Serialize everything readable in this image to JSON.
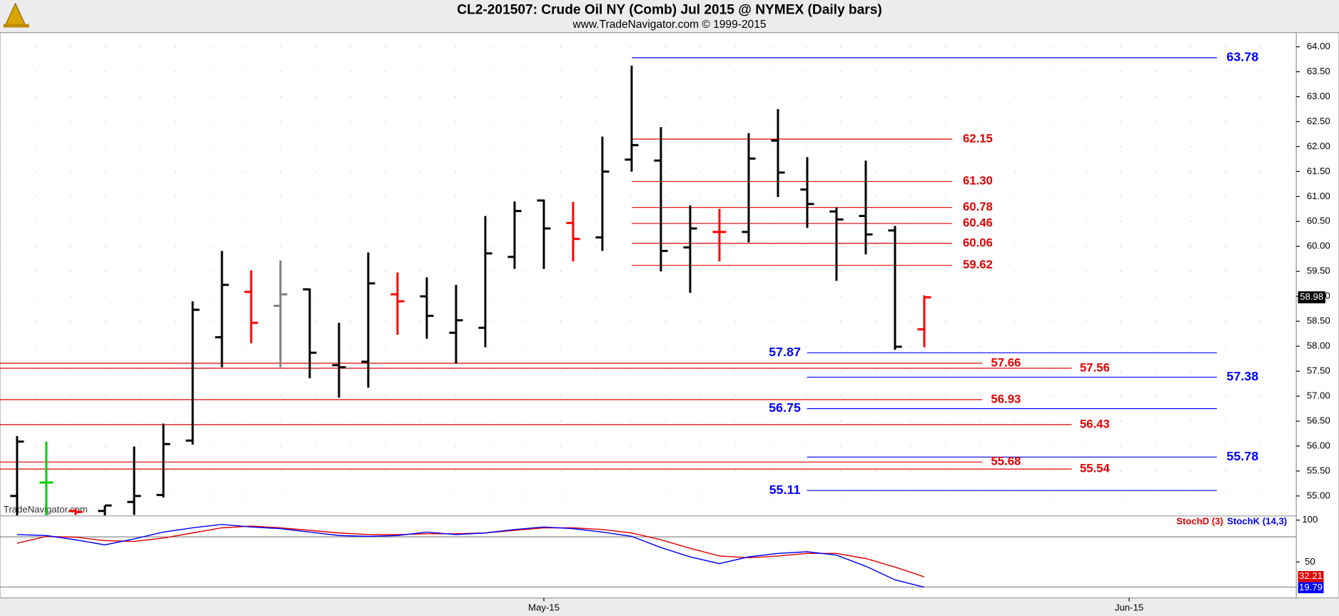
{
  "chart_data": [
    {
      "type": "ohlc",
      "title": "CL2-201507:  Crude Oil NY (Comb) Jul 2015 @ NYMEX  (Daily bars)",
      "subtitle": "www.TradeNavigator.com © 1999-2015",
      "watermark": "TradeNavigator.com",
      "categories": [
        null,
        null,
        null,
        null,
        null,
        null,
        null,
        null,
        null,
        null,
        null,
        null,
        null,
        null,
        null,
        null,
        null,
        null,
        "May-15",
        null,
        null,
        null,
        null,
        null,
        null,
        null,
        null,
        null,
        null,
        null,
        null,
        null,
        null,
        null,
        null,
        null,
        null,
        null,
        "Jun-15",
        null,
        null,
        null,
        null,
        null
      ],
      "open": [
        55.0,
        55.27,
        54.7,
        54.7,
        54.88,
        55.02,
        56.11,
        58.18,
        59.09,
        58.81,
        59.14,
        57.62,
        57.69,
        59.04,
        59.0,
        58.27,
        58.37,
        59.79,
        60.92,
        60.47,
        60.18,
        61.74,
        61.72,
        59.98,
        60.29,
        60.29,
        62.12,
        61.14,
        60.7,
        60.61,
        60.32,
        58.34,
        null,
        null,
        null,
        null,
        null,
        null,
        null,
        null,
        null,
        null,
        null,
        null
      ],
      "high": [
        56.2,
        56.09,
        54.75,
        54.81,
        55.99,
        56.45,
        58.9,
        59.91,
        59.52,
        59.72,
        59.16,
        58.47,
        59.88,
        59.48,
        59.38,
        59.23,
        60.61,
        60.9,
        60.94,
        60.89,
        62.2,
        63.62,
        62.39,
        60.82,
        60.75,
        62.27,
        62.75,
        61.79,
        60.78,
        61.72,
        60.41,
        59.02,
        null,
        null,
        null,
        null,
        null,
        null,
        null,
        null,
        null,
        null,
        null,
        null
      ],
      "low": [
        54.61,
        54.61,
        54.62,
        54.61,
        54.62,
        54.97,
        56.03,
        57.58,
        58.06,
        57.58,
        57.36,
        56.97,
        57.17,
        58.23,
        58.15,
        57.65,
        57.98,
        59.55,
        59.55,
        59.7,
        59.91,
        61.5,
        59.5,
        59.07,
        59.7,
        60.08,
        60.99,
        60.37,
        59.31,
        59.84,
        57.93,
        57.98,
        null,
        null,
        null,
        null,
        null,
        null,
        null,
        null,
        null,
        null,
        null,
        null
      ],
      "close": [
        56.09,
        55.27,
        54.68,
        54.81,
        55.0,
        56.04,
        58.73,
        59.23,
        58.47,
        59.04,
        57.87,
        57.58,
        59.26,
        58.9,
        58.61,
        58.52,
        59.86,
        60.71,
        60.36,
        60.15,
        61.5,
        62.03,
        59.91,
        60.36,
        60.29,
        61.76,
        61.48,
        60.85,
        60.54,
        60.24,
        57.99,
        58.98,
        null,
        null,
        null,
        null,
        null,
        null,
        null,
        null,
        null,
        null,
        null,
        null
      ],
      "bar_colors": [
        "#000000",
        "#00cc00",
        "#ff0000",
        "#000000",
        "#000000",
        "#000000",
        "#000000",
        "#000000",
        "#ff0000",
        "#808080",
        "#000000",
        "#000000",
        "#000000",
        "#ff0000",
        "#000000",
        "#000000",
        "#000000",
        "#000000",
        "#000000",
        "#ff0000",
        "#000000",
        "#000000",
        "#000000",
        "#000000",
        "#ff0000",
        "#000000",
        "#000000",
        "#000000",
        "#000000",
        "#000000",
        "#000000",
        "#ff0000",
        null,
        null,
        null,
        null,
        null,
        null,
        null,
        null,
        null,
        null,
        null,
        null
      ],
      "ylim": [
        54.6,
        64.25
      ],
      "yticks": [
        {
          "value": 55,
          "label": "55.00"
        },
        {
          "value": 55.5,
          "label": "55.50"
        },
        {
          "value": 56,
          "label": "56.00"
        },
        {
          "value": 56.5,
          "label": "56.50"
        },
        {
          "value": 57,
          "label": "57.00"
        },
        {
          "value": 57.5,
          "label": "57.50"
        },
        {
          "value": 58,
          "label": "58.00"
        },
        {
          "value": 58.5,
          "label": "58.50"
        },
        {
          "value": 59,
          "label": "59.00"
        },
        {
          "value": 59.5,
          "label": "59.50"
        },
        {
          "value": 60,
          "label": "60.00"
        },
        {
          "value": 60.5,
          "label": "60.50"
        },
        {
          "value": 61,
          "label": "61.00"
        },
        {
          "value": 61.5,
          "label": "61.50"
        },
        {
          "value": 62,
          "label": "62.00"
        },
        {
          "value": 62.5,
          "label": "62.50"
        },
        {
          "value": 63,
          "label": "63.00"
        },
        {
          "value": 63.5,
          "label": "63.50"
        },
        {
          "value": 64,
          "label": "64.00"
        }
      ],
      "grid": true,
      "hlines": [
        {
          "value": 63.78,
          "color": "#0000ff"
        },
        {
          "value": 62.15,
          "color": "#e00000"
        },
        {
          "value": 61.3,
          "label": "61.30",
          "color": "#e00000"
        },
        {
          "value": 60.78,
          "color": "#e00000"
        },
        {
          "value": 60.46,
          "color": "#e00000"
        },
        {
          "value": 60.06,
          "color": "#e00000"
        },
        {
          "value": 59.62,
          "color": "#e00000"
        },
        {
          "value": 57.87,
          "color": "#0000ff"
        },
        {
          "value": 57.66,
          "color": "#e00000"
        },
        {
          "value": 57.56,
          "color": "#e00000"
        },
        {
          "value": 57.38,
          "color": "#0000ff"
        },
        {
          "value": 56.93,
          "color": "#e00000"
        },
        {
          "value": 56.75,
          "color": "#0000ff"
        },
        {
          "value": 56.43,
          "color": "#e00000"
        },
        {
          "value": 55.78,
          "color": "#0000ff"
        },
        {
          "value": 55.68,
          "color": "#e00000"
        },
        {
          "value": 55.54,
          "color": "#e00000"
        },
        {
          "value": 55.11,
          "color": "#0000ff"
        }
      ]
    },
    {
      "type": "line",
      "series": [
        {
          "name": "StochD (3)",
          "color": "#e00000",
          "values": [
            72.4,
            80.6,
            79.6,
            75.5,
            74.5,
            78.6,
            84.7,
            90.8,
            92.9,
            90.8,
            87.8,
            84.7,
            82.7,
            82.7,
            83.7,
            83.7,
            84.7,
            87.8,
            90.8,
            90.8,
            88.8,
            84.7,
            76.5,
            66.3,
            57.1,
            55.1,
            57.1,
            60.2,
            60.2,
            54.1,
            43.9,
            32.21,
            null,
            null,
            null,
            null,
            null,
            null,
            null,
            null,
            null,
            null,
            null,
            null
          ]
        },
        {
          "name": "StochK (14,3)",
          "color": "#0000ff",
          "values": [
            82.7,
            81.6,
            76.5,
            70.4,
            77.6,
            85.7,
            90.8,
            94.9,
            91.8,
            89.8,
            85.7,
            81.6,
            80.6,
            81.6,
            85.7,
            82.7,
            84.7,
            88.8,
            91.8,
            89.8,
            85.7,
            80.6,
            67.3,
            56.1,
            48.0,
            56.1,
            60.2,
            62.2,
            58.2,
            44.9,
            28.6,
            19.79,
            null,
            null,
            null,
            null,
            null,
            null,
            null,
            null,
            null,
            null,
            null,
            null
          ]
        }
      ],
      "ylim": [
        7,
        105
      ],
      "yticks": [
        50,
        100
      ],
      "levels": [
        80,
        20
      ]
    }
  ]
}
